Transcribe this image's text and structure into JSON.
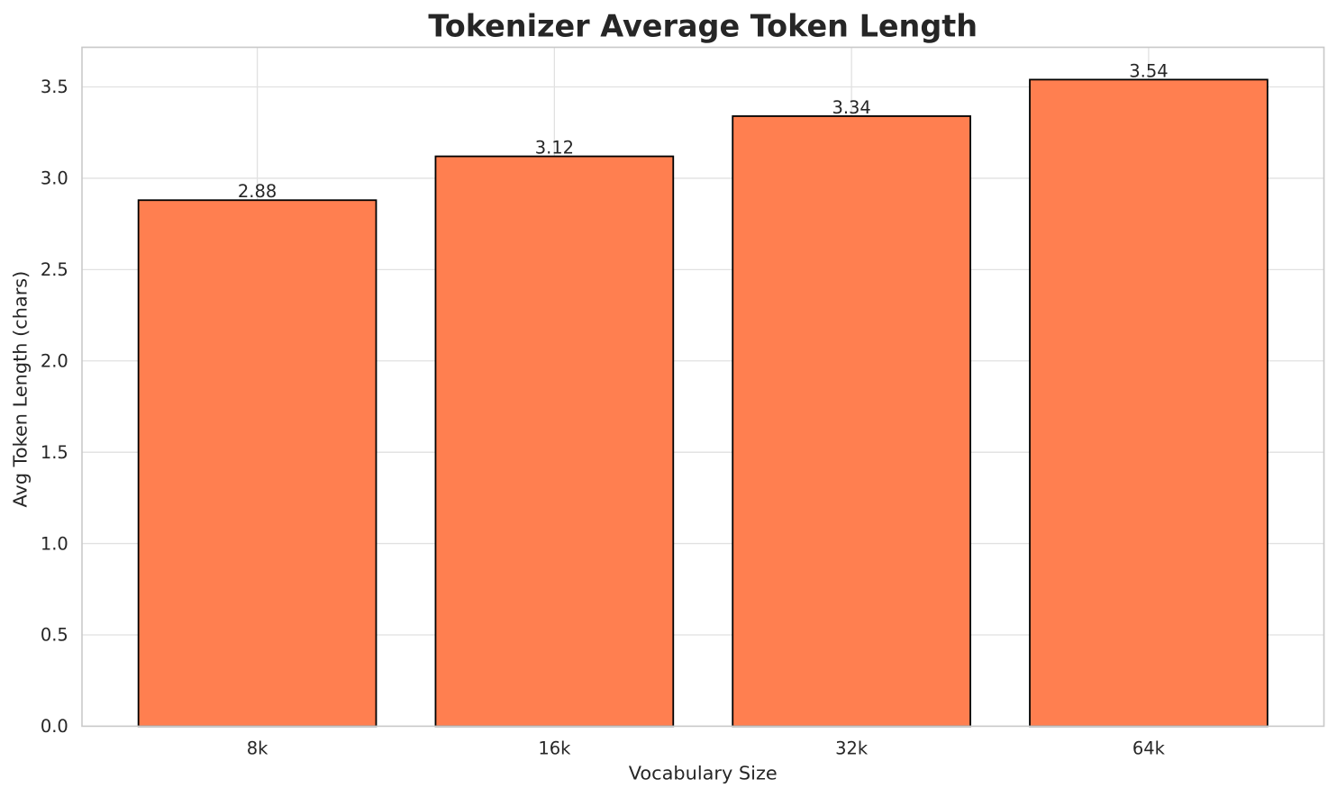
{
  "chart_data": {
    "type": "bar",
    "title": "Tokenizer Average Token Length",
    "xlabel": "Vocabulary Size",
    "ylabel": "Avg Token Length (chars)",
    "categories": [
      "8k",
      "16k",
      "32k",
      "64k"
    ],
    "values": [
      2.88,
      3.12,
      3.34,
      3.54
    ],
    "bar_value_labels": [
      "2.88",
      "3.12",
      "3.34",
      "3.54"
    ],
    "ytick_labels": [
      "0.0",
      "0.5",
      "1.0",
      "1.5",
      "2.0",
      "2.5",
      "3.0",
      "3.5"
    ],
    "yticks": [
      0.0,
      0.5,
      1.0,
      1.5,
      2.0,
      2.5,
      3.0,
      3.5
    ],
    "ylim": [
      0,
      3.717
    ],
    "grid": true,
    "legend_position": "none",
    "colors": {
      "bar_fill": "#FF7F50",
      "bar_edge": "#000000",
      "grid_line": "#E1E1E1",
      "axes_border": "#C9C9C9",
      "text": "#262626",
      "background": "#FFFFFF"
    }
  }
}
